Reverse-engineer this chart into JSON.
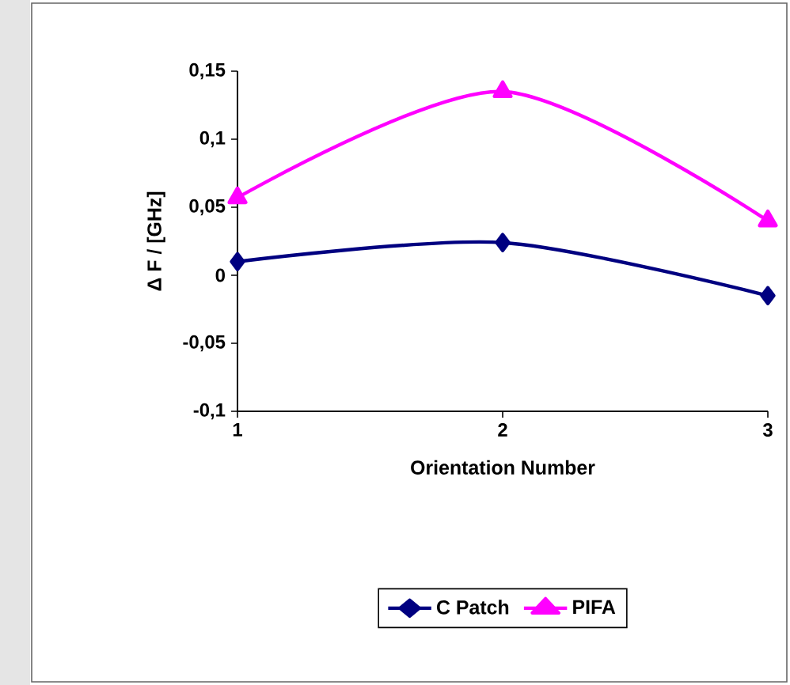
{
  "chart_data": {
    "type": "line",
    "xlabel": "Orientation Number",
    "ylabel": "Δ F / [GHz]",
    "x": [
      1,
      2,
      3
    ],
    "series": [
      {
        "name": "C Patch",
        "color": "#000080",
        "marker": "diamond",
        "values": [
          0.01,
          0.024,
          -0.015
        ]
      },
      {
        "name": "PIFA",
        "color": "#ff00ff",
        "marker": "triangle",
        "values": [
          0.057,
          0.135,
          0.04
        ]
      }
    ],
    "xlim": [
      1,
      3
    ],
    "xticks": [
      1,
      2,
      3
    ],
    "ylim": [
      -0.1,
      0.15
    ],
    "yticks": [
      {
        "value": -0.1,
        "label": "-0,1"
      },
      {
        "value": -0.05,
        "label": "-0,05"
      },
      {
        "value": 0,
        "label": "0"
      },
      {
        "value": 0.05,
        "label": "0,05"
      },
      {
        "value": 0.1,
        "label": "0,1"
      },
      {
        "value": 0.15,
        "label": "0,15"
      }
    ],
    "legend": "bottom",
    "grid": false
  }
}
